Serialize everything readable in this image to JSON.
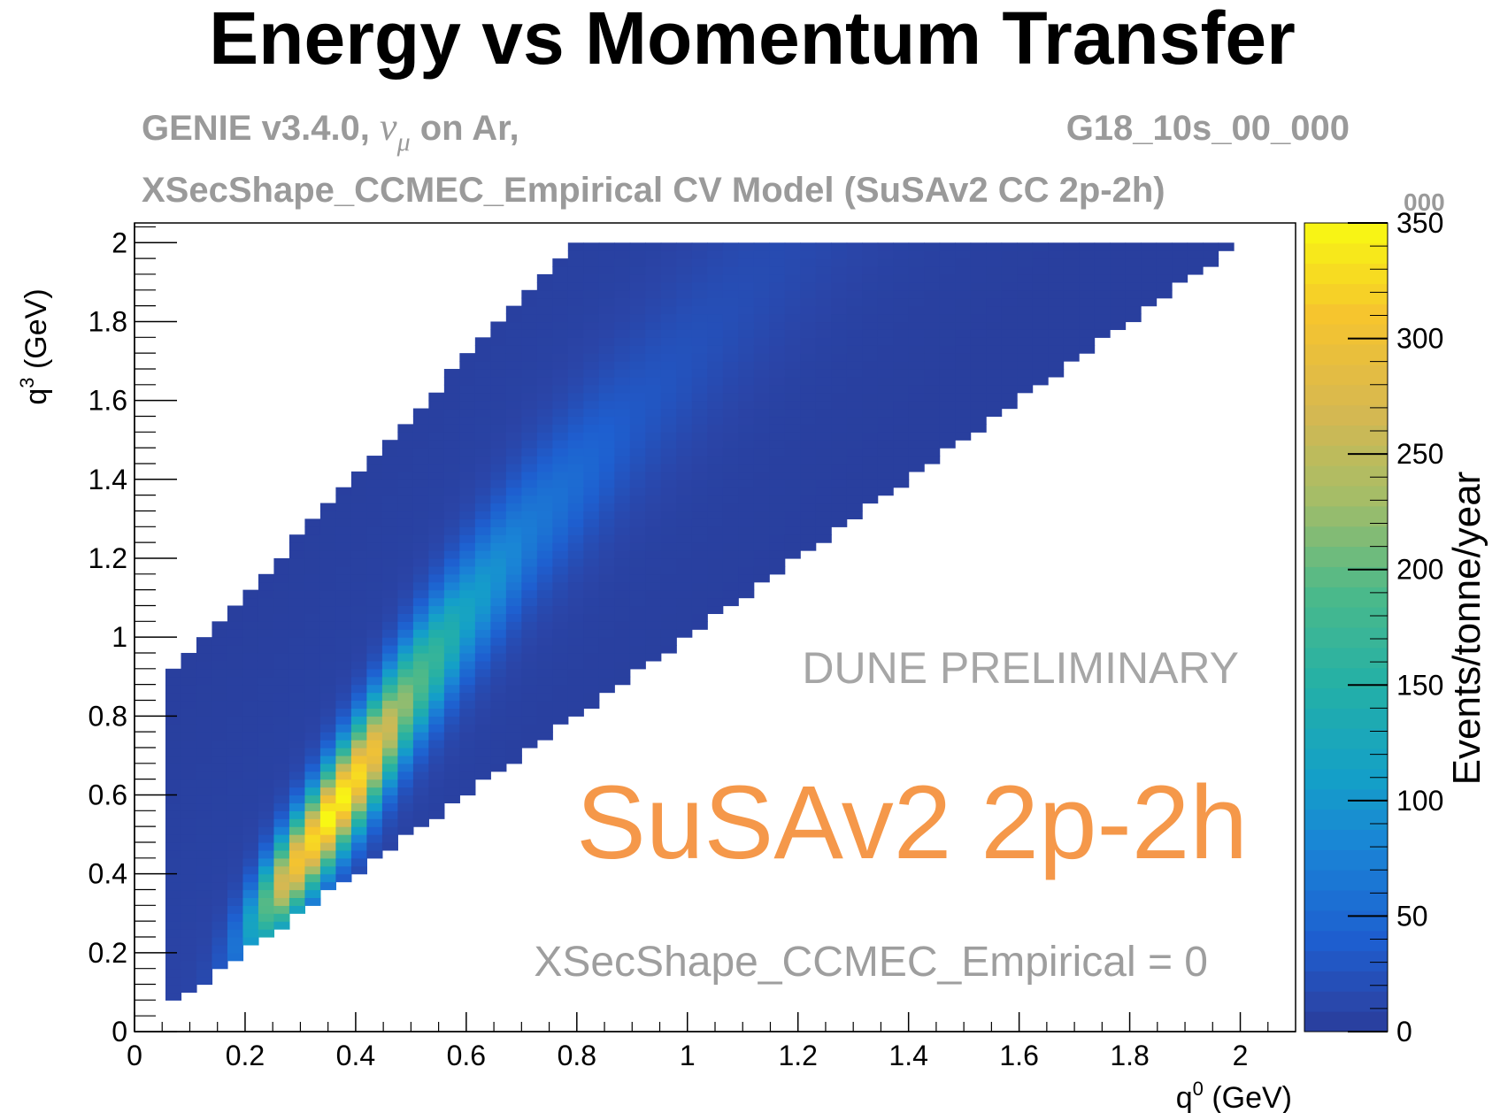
{
  "chart_data": {
    "type": "heatmap",
    "title": "Energy vs Momentum Transfer",
    "subtitle_line1_left": "GENIE v3.4.0, ",
    "subtitle_nu": "ν",
    "subtitle_mu": "μ",
    "subtitle_line1_left_end": " on Ar,",
    "subtitle_line1_right": "G18_10s_00_000",
    "subtitle_line2": "XSecShape_CCMEC_Empirical CV Model (SuSAv2 CC 2p-2h)",
    "xlabel_base": "q",
    "xlabel_sup": "0",
    "xlabel_unit": " (GeV)",
    "ylabel_base": "q",
    "ylabel_sup": "3",
    "ylabel_unit": " (GeV)",
    "zlabel": "Events/tonne/year",
    "z_exponent_label": "000",
    "xlim": [
      0,
      2.1
    ],
    "ylim": [
      0,
      2.05
    ],
    "zlim": [
      0,
      350
    ],
    "x_ticks": [
      "0",
      "0.2",
      "0.4",
      "0.6",
      "0.8",
      "1",
      "1.2",
      "1.4",
      "1.6",
      "1.8",
      "2"
    ],
    "y_ticks": [
      "0",
      "0.2",
      "0.4",
      "0.6",
      "0.8",
      "1",
      "1.2",
      "1.4",
      "1.6",
      "1.8",
      "2"
    ],
    "z_ticks": [
      "0",
      "50",
      "100",
      "150",
      "200",
      "250",
      "300",
      "350"
    ],
    "annotations": {
      "preliminary": "DUNE PRELIMINARY",
      "model": "SuSAv2 2p-2h",
      "param": "XSecShape_CCMEC_Empirical = 0"
    },
    "colors": {
      "preliminary": "#a6a6a6",
      "model": "#f5984a",
      "param": "#9e9e9e",
      "subtitle": "#9a9a9a"
    },
    "bins": {
      "x_bin_width": 0.028,
      "y_bin_width": 0.02
    },
    "physical_region": {
      "lower_edge": "q3 = q0 (diagonal)",
      "upper_edge_approx": "q3 = 0.8 + 1.5*q0 (clipped at 2.0)",
      "x_range": [
        0.056,
        2.0
      ]
    },
    "peak": {
      "q0": 0.36,
      "q3": 0.56,
      "value": 350
    },
    "ridge": [
      {
        "q0": 0.3,
        "q3": 0.44,
        "value": 300
      },
      {
        "q0": 0.36,
        "q3": 0.56,
        "value": 350
      },
      {
        "q0": 0.42,
        "q3": 0.68,
        "value": 310
      },
      {
        "q0": 0.5,
        "q3": 0.86,
        "value": 200
      },
      {
        "q0": 0.6,
        "q3": 1.06,
        "value": 110
      },
      {
        "q0": 0.72,
        "q3": 1.28,
        "value": 60
      },
      {
        "q0": 0.9,
        "q3": 1.55,
        "value": 25
      }
    ],
    "colorscale": [
      {
        "z": 0,
        "color": "#283c99"
      },
      {
        "z": 10,
        "color": "#2a45a8"
      },
      {
        "z": 40,
        "color": "#1e5fd0"
      },
      {
        "z": 80,
        "color": "#1a84d6"
      },
      {
        "z": 110,
        "color": "#14a0c8"
      },
      {
        "z": 150,
        "color": "#24b0a6"
      },
      {
        "z": 190,
        "color": "#4cb98a"
      },
      {
        "z": 230,
        "color": "#a4bd68"
      },
      {
        "z": 270,
        "color": "#d8b850"
      },
      {
        "z": 310,
        "color": "#f6c42e"
      },
      {
        "z": 350,
        "color": "#f8fa12"
      }
    ]
  }
}
